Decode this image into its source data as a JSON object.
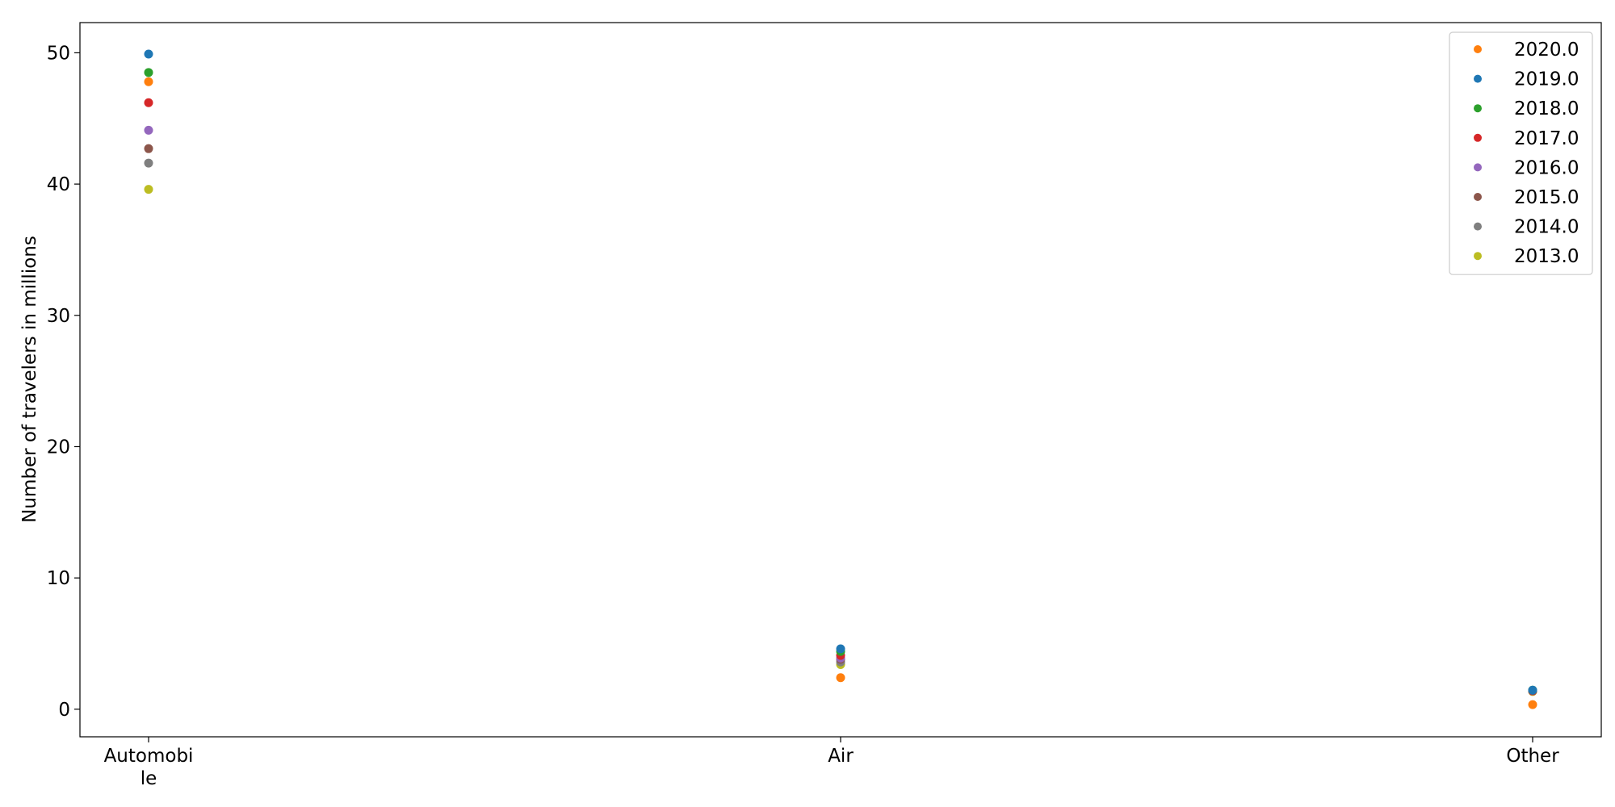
{
  "chart_data": {
    "type": "scatter",
    "title": "",
    "xlabel": "",
    "ylabel": "Number of travelers in millions",
    "categories": [
      {
        "name": "Automobile",
        "lines": [
          "Automobi",
          "le"
        ]
      },
      {
        "name": "Air",
        "lines": [
          "Air"
        ]
      },
      {
        "name": "Other",
        "lines": [
          "Other"
        ]
      }
    ],
    "ylim": [
      -2.1,
      52.3
    ],
    "yticks": [
      0,
      10,
      20,
      30,
      40,
      50
    ],
    "grid": false,
    "legend_position": "top-right",
    "series": [
      {
        "name": "2020.0",
        "color": "#ff7f0e",
        "values": [
          47.8,
          2.4,
          0.35
        ]
      },
      {
        "name": "2019.0",
        "color": "#1f77b4",
        "values": [
          49.9,
          4.6,
          1.45
        ]
      },
      {
        "name": "2018.0",
        "color": "#2ca02c",
        "values": [
          48.5,
          4.4,
          1.45
        ]
      },
      {
        "name": "2017.0",
        "color": "#d62728",
        "values": [
          46.2,
          4.1,
          1.4
        ]
      },
      {
        "name": "2016.0",
        "color": "#9467bd",
        "values": [
          44.1,
          3.9,
          1.4
        ]
      },
      {
        "name": "2015.0",
        "color": "#8c564b",
        "values": [
          42.7,
          3.8,
          1.4
        ]
      },
      {
        "name": "2014.0",
        "color": "#7f7f7f",
        "values": [
          41.6,
          3.6,
          1.4
        ]
      },
      {
        "name": "2013.0",
        "color": "#bcbd22",
        "values": [
          39.6,
          3.4,
          1.35
        ]
      }
    ]
  }
}
